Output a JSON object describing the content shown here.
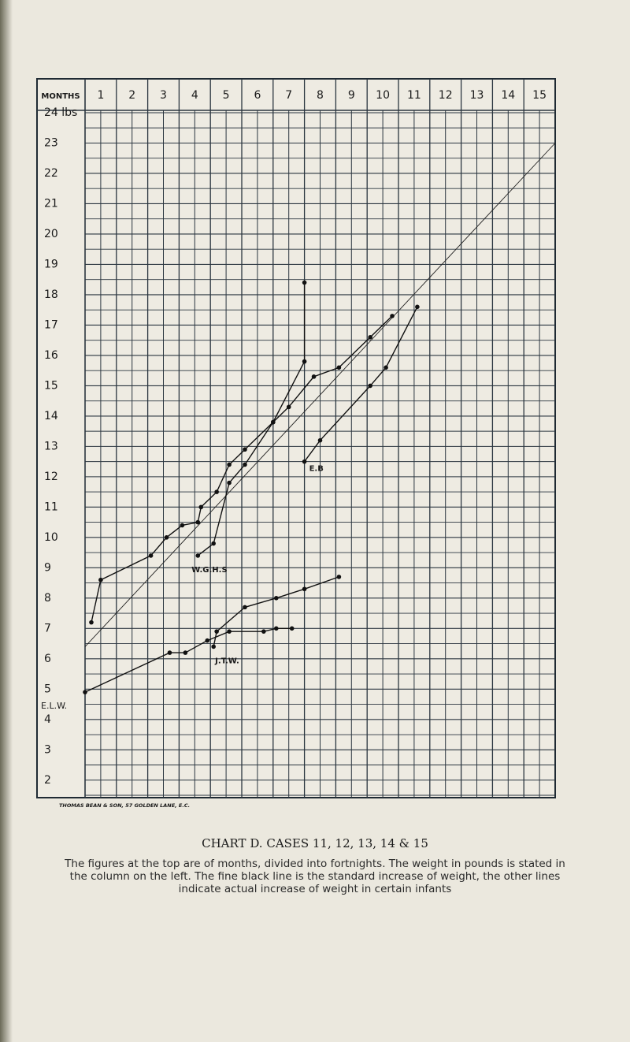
{
  "chart_data": {
    "type": "line",
    "corner_label": "MONTHS",
    "categories": [
      "1",
      "2",
      "3",
      "4",
      "5",
      "6",
      "7",
      "8",
      "9",
      "10",
      "11",
      "12",
      "13",
      "14",
      "15"
    ],
    "xlim": [
      0,
      15
    ],
    "ylim": [
      1.5,
      24
    ],
    "yticks": [
      {
        "value": 24,
        "label": "24 lbs"
      },
      23,
      22,
      21,
      20,
      19,
      18,
      17,
      16,
      15,
      14,
      13,
      12,
      11,
      10,
      9,
      8,
      7,
      6,
      5,
      4,
      3,
      2
    ],
    "grid": true,
    "series": [
      {
        "color": "#222222",
        "markers": false,
        "x": [
          0,
          15
        ],
        "values": [
          6.4,
          23
        ]
      },
      {
        "color": "#111111",
        "markers": true,
        "x": [
          0.2,
          0.5,
          2.1,
          2.6,
          3.1,
          3.6,
          3.7,
          4.2,
          4.6,
          5.1,
          6,
          6.5,
          7.3,
          8.1,
          9.1,
          9.8
        ],
        "values": [
          7.2,
          8.6,
          9.4,
          10,
          10.4,
          10.5,
          11,
          11.5,
          12.4,
          12.9,
          13.8,
          14.3,
          15.3,
          15.6,
          16.6,
          17.3
        ]
      },
      {
        "name": "W.G.H.S",
        "color": "#111111",
        "markers": true,
        "x": [
          3.6,
          4.1,
          4.6,
          5.1,
          6,
          7,
          7
        ],
        "values": [
          9.4,
          9.8,
          11.8,
          12.4,
          13.8,
          15.8,
          18.4
        ]
      },
      {
        "name": "E.B",
        "color": "#111111",
        "markers": true,
        "x": [
          7,
          7.5,
          9.1,
          9.6,
          10.6
        ],
        "values": [
          12.5,
          13.2,
          15,
          15.6,
          17.6
        ]
      },
      {
        "name": "E.L.W.",
        "color": "#111111",
        "markers": true,
        "x": [
          0,
          2.7,
          3.2,
          3.9,
          4.6,
          5.7,
          6.1,
          6.6
        ],
        "values": [
          4.9,
          6.2,
          6.2,
          6.6,
          6.9,
          6.9,
          7,
          7
        ]
      },
      {
        "name": "J.T.W.",
        "color": "#111111",
        "markers": true,
        "x": [
          4.1,
          4.2,
          5.1,
          6.1,
          7,
          8.1
        ],
        "values": [
          6.4,
          6.9,
          7.7,
          8,
          8.3,
          8.7
        ]
      }
    ],
    "publisher": "THOMAS BEAN & SON, 57 GOLDEN LANE, E.C.",
    "title": "CHART D.  CASES 11, 12, 13, 14 & 15",
    "caption": "The figures at the top are of months, divided into fortnights.  The weight in pounds is stated in the column on the left.  The fine black line is the standard increase of weight, the other lines indicate actual increase of weight in certain infants"
  }
}
